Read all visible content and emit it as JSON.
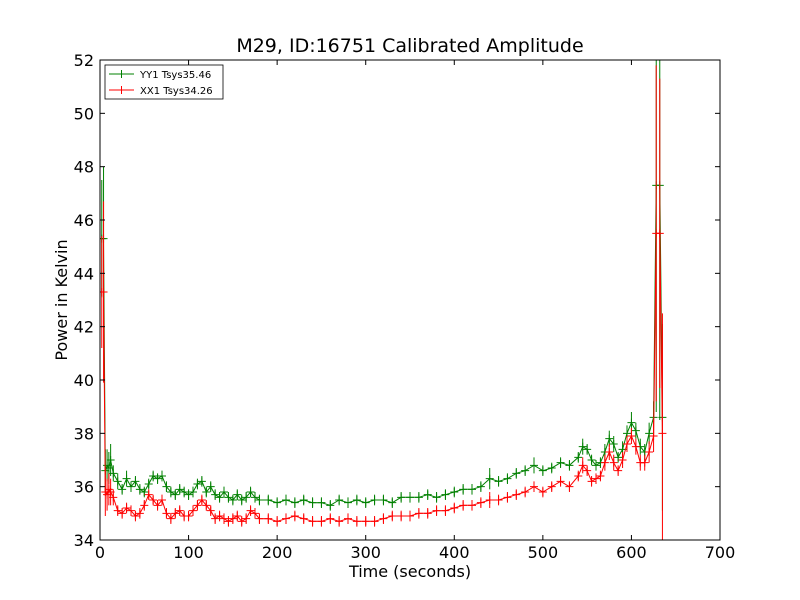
{
  "chart_data": {
    "type": "line",
    "title": "M29, ID:16751 Calibrated Amplitude",
    "xlabel": "Time (seconds)",
    "ylabel": "Power in Kelvin",
    "xlim": [
      0,
      700
    ],
    "ylim": [
      34,
      52
    ],
    "xticks": [
      0,
      100,
      200,
      300,
      400,
      500,
      600,
      700
    ],
    "yticks": [
      34,
      36,
      38,
      40,
      42,
      44,
      46,
      48,
      50,
      52
    ],
    "grid": false,
    "legend_position": "top-left",
    "marker": "plus",
    "error_bars": true,
    "series": [
      {
        "name": "YY1 Tsys35.46",
        "color": "#008000",
        "x": [
          2,
          4,
          6,
          8,
          10,
          12,
          15,
          20,
          25,
          30,
          35,
          40,
          45,
          50,
          55,
          60,
          65,
          70,
          75,
          80,
          85,
          90,
          95,
          100,
          105,
          110,
          115,
          120,
          125,
          130,
          135,
          140,
          145,
          150,
          155,
          160,
          165,
          170,
          175,
          180,
          190,
          200,
          210,
          220,
          230,
          240,
          250,
          260,
          270,
          280,
          290,
          300,
          310,
          320,
          330,
          340,
          350,
          360,
          370,
          380,
          390,
          400,
          410,
          420,
          430,
          440,
          450,
          460,
          470,
          480,
          490,
          500,
          510,
          520,
          530,
          540,
          545,
          550,
          555,
          560,
          565,
          570,
          575,
          580,
          585,
          590,
          595,
          600,
          605,
          610,
          615,
          620,
          625,
          628,
          632,
          635
        ],
        "y": [
          45.3,
          45.3,
          36.6,
          36.8,
          36.7,
          37.0,
          36.5,
          36.2,
          35.9,
          36.3,
          36.0,
          36.2,
          35.9,
          35.8,
          36.1,
          36.4,
          36.3,
          36.4,
          36.0,
          35.8,
          35.7,
          35.9,
          35.8,
          35.7,
          35.8,
          36.1,
          36.2,
          35.8,
          36.0,
          35.7,
          35.6,
          35.8,
          35.6,
          35.5,
          35.7,
          35.5,
          35.6,
          35.8,
          35.6,
          35.5,
          35.5,
          35.4,
          35.5,
          35.4,
          35.5,
          35.4,
          35.4,
          35.3,
          35.5,
          35.4,
          35.5,
          35.4,
          35.5,
          35.5,
          35.4,
          35.6,
          35.6,
          35.6,
          35.7,
          35.6,
          35.7,
          35.8,
          35.9,
          35.9,
          36.0,
          36.3,
          36.2,
          36.3,
          36.5,
          36.6,
          36.8,
          36.6,
          36.7,
          36.9,
          36.8,
          37.1,
          37.5,
          37.4,
          37.0,
          36.8,
          36.9,
          37.3,
          37.8,
          37.6,
          37.1,
          37.4,
          38.0,
          38.4,
          38.1,
          37.5,
          37.3,
          38.0,
          38.6,
          47.3,
          47.3,
          38.6
        ],
        "err": [
          2.2,
          2.7,
          0.8,
          0.6,
          0.6,
          0.6,
          0.3,
          0.3,
          0.2,
          0.3,
          0.2,
          0.2,
          0.2,
          0.2,
          0.2,
          0.2,
          0.2,
          0.2,
          0.2,
          0.2,
          0.2,
          0.2,
          0.2,
          0.2,
          0.2,
          0.2,
          0.2,
          0.2,
          0.2,
          0.2,
          0.2,
          0.2,
          0.2,
          0.2,
          0.2,
          0.2,
          0.2,
          0.2,
          0.2,
          0.2,
          0.2,
          0.2,
          0.2,
          0.2,
          0.2,
          0.2,
          0.2,
          0.2,
          0.2,
          0.2,
          0.2,
          0.2,
          0.2,
          0.2,
          0.2,
          0.2,
          0.2,
          0.2,
          0.2,
          0.2,
          0.2,
          0.2,
          0.2,
          0.2,
          0.2,
          0.4,
          0.2,
          0.2,
          0.2,
          0.2,
          0.3,
          0.2,
          0.2,
          0.2,
          0.2,
          0.2,
          0.3,
          0.2,
          0.2,
          0.2,
          0.2,
          0.3,
          0.3,
          0.3,
          0.2,
          0.3,
          0.3,
          0.4,
          0.3,
          0.3,
          0.3,
          0.4,
          0.6,
          8.5,
          8.8,
          3.5
        ]
      },
      {
        "name": "XX1 Tsys34.26",
        "color": "#ff0000",
        "x": [
          2,
          4,
          6,
          8,
          10,
          12,
          15,
          20,
          25,
          30,
          35,
          40,
          45,
          50,
          55,
          60,
          65,
          70,
          75,
          80,
          85,
          90,
          95,
          100,
          105,
          110,
          115,
          120,
          125,
          130,
          135,
          140,
          145,
          150,
          155,
          160,
          165,
          170,
          175,
          180,
          190,
          200,
          210,
          220,
          230,
          240,
          250,
          260,
          270,
          280,
          290,
          300,
          310,
          320,
          330,
          340,
          350,
          360,
          370,
          380,
          390,
          400,
          410,
          420,
          430,
          440,
          450,
          460,
          470,
          480,
          490,
          500,
          510,
          520,
          530,
          540,
          545,
          550,
          555,
          560,
          565,
          570,
          575,
          580,
          585,
          590,
          595,
          600,
          605,
          610,
          615,
          620,
          625,
          628,
          632,
          635
        ],
        "y": [
          43.3,
          43.3,
          35.8,
          35.7,
          35.9,
          35.8,
          35.6,
          35.1,
          35.0,
          35.2,
          35.1,
          34.9,
          35.0,
          35.3,
          35.7,
          35.5,
          35.3,
          35.5,
          35.0,
          34.8,
          35.0,
          35.1,
          34.9,
          34.9,
          35.1,
          35.3,
          35.5,
          35.3,
          35.1,
          34.8,
          34.9,
          34.8,
          34.7,
          34.8,
          34.9,
          34.7,
          34.8,
          35.1,
          35.0,
          34.8,
          34.8,
          34.7,
          34.8,
          34.9,
          34.8,
          34.7,
          34.7,
          34.8,
          34.7,
          34.8,
          34.7,
          34.7,
          34.7,
          34.8,
          34.9,
          34.9,
          34.9,
          35.0,
          35.0,
          35.1,
          35.1,
          35.2,
          35.3,
          35.3,
          35.4,
          35.5,
          35.5,
          35.6,
          35.7,
          35.8,
          36.0,
          35.8,
          36.0,
          36.2,
          36.0,
          36.4,
          36.8,
          36.6,
          36.2,
          36.3,
          36.4,
          36.9,
          37.3,
          36.9,
          36.6,
          37.0,
          37.6,
          37.9,
          37.5,
          36.9,
          36.9,
          37.3,
          37.9,
          45.5,
          45.5,
          38.0
        ],
        "err": [
          2.1,
          3.4,
          0.9,
          0.6,
          0.6,
          0.5,
          0.3,
          0.2,
          0.2,
          0.2,
          0.2,
          0.2,
          0.2,
          0.2,
          0.2,
          0.2,
          0.2,
          0.2,
          0.2,
          0.2,
          0.2,
          0.2,
          0.2,
          0.2,
          0.2,
          0.2,
          0.2,
          0.2,
          0.2,
          0.2,
          0.2,
          0.2,
          0.2,
          0.2,
          0.2,
          0.2,
          0.2,
          0.2,
          0.2,
          0.2,
          0.2,
          0.2,
          0.2,
          0.2,
          0.2,
          0.2,
          0.2,
          0.2,
          0.2,
          0.2,
          0.2,
          0.2,
          0.2,
          0.2,
          0.2,
          0.2,
          0.2,
          0.2,
          0.2,
          0.2,
          0.2,
          0.2,
          0.2,
          0.2,
          0.2,
          0.3,
          0.2,
          0.2,
          0.2,
          0.2,
          0.2,
          0.2,
          0.2,
          0.2,
          0.2,
          0.2,
          0.3,
          0.2,
          0.2,
          0.2,
          0.2,
          0.3,
          0.3,
          0.3,
          0.2,
          0.3,
          0.3,
          0.3,
          0.3,
          0.3,
          0.3,
          0.4,
          0.6,
          6.3,
          5.8,
          4.5
        ]
      }
    ]
  }
}
